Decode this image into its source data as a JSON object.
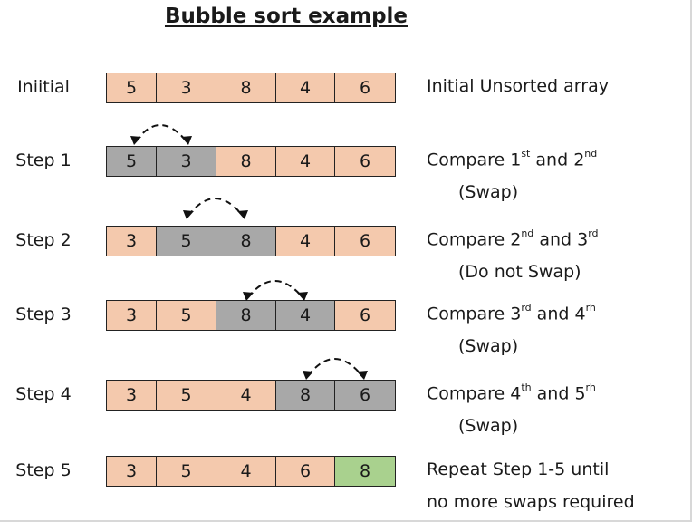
{
  "title": "Bubble sort example",
  "colors": {
    "normal": "#f4c9ad",
    "compared": "#a8a8a8",
    "done": "#a9d18e"
  },
  "rows": [
    {
      "label": "Iniitial",
      "cells": [
        "5",
        "3",
        "8",
        "4",
        "6"
      ],
      "compared": [],
      "done": [],
      "desc": [
        "Initial Unsorted array"
      ],
      "desc_sub": ""
    },
    {
      "label": "Step 1",
      "cells": [
        "5",
        "3",
        "8",
        "4",
        "6"
      ],
      "compared": [
        0,
        1
      ],
      "done": [],
      "desc": [
        "Compare 1",
        "st",
        " and 2",
        "nd"
      ],
      "desc_sub": "(Swap)"
    },
    {
      "label": "Step 2",
      "cells": [
        "3",
        "5",
        "8",
        "4",
        "6"
      ],
      "compared": [
        1,
        2
      ],
      "done": [],
      "desc": [
        "Compare 2",
        "nd",
        " and 3",
        "rd"
      ],
      "desc_sub": "(Do not Swap)"
    },
    {
      "label": "Step 3",
      "cells": [
        "3",
        "5",
        "8",
        "4",
        "6"
      ],
      "compared": [
        2,
        3
      ],
      "done": [],
      "desc": [
        "Compare 3",
        "rd",
        " and 4",
        "rh"
      ],
      "desc_sub": "(Swap)"
    },
    {
      "label": "Step 4",
      "cells": [
        "3",
        "5",
        "4",
        "8",
        "6"
      ],
      "compared": [
        3,
        4
      ],
      "done": [],
      "desc": [
        "Compare 4",
        "th",
        " and 5",
        "rh"
      ],
      "desc_sub": "(Swap)"
    },
    {
      "label": "Step 5",
      "cells": [
        "3",
        "5",
        "4",
        "6",
        "8"
      ],
      "compared": [],
      "done": [
        4
      ],
      "desc": [
        "Repeat  Step 1-5 until"
      ],
      "desc_sub": "no more swaps required"
    }
  ]
}
